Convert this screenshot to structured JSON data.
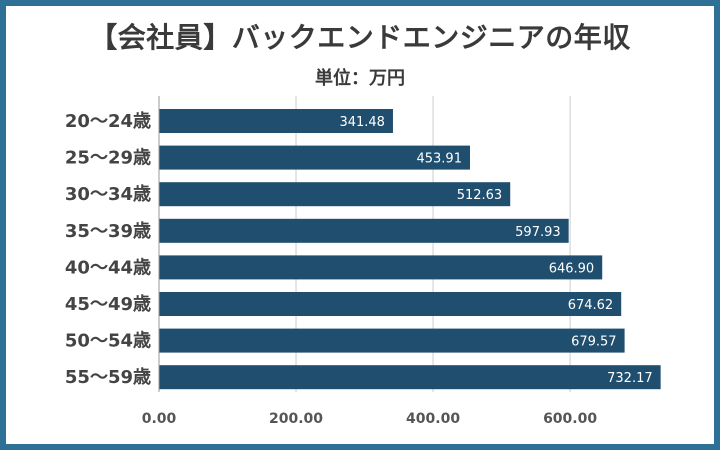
{
  "chart_data": {
    "type": "bar",
    "orientation": "horizontal",
    "title": "【会社員】バックエンドエンジニアの年収",
    "subtitle": "単位：万円",
    "categories": [
      "20〜24歳",
      "25〜29歳",
      "30〜34歳",
      "35〜39歳",
      "40〜44歳",
      "45〜49歳",
      "50〜54歳",
      "55〜59歳"
    ],
    "values": [
      341.48,
      453.91,
      512.63,
      597.93,
      646.9,
      674.62,
      679.57,
      732.17
    ],
    "value_labels": [
      "341.48",
      "453.91",
      "512.63",
      "597.93",
      "646.90",
      "674.62",
      "679.57",
      "732.17"
    ],
    "x_ticks": [
      0,
      200,
      400,
      600
    ],
    "x_tick_labels": [
      "0.00",
      "200.00",
      "400.00",
      "600.00"
    ],
    "xlim": [
      0,
      740
    ],
    "grid": true,
    "colors": {
      "bar": "#1f4e6e",
      "frame": "#2f7196",
      "grid": "#cccccc"
    }
  }
}
